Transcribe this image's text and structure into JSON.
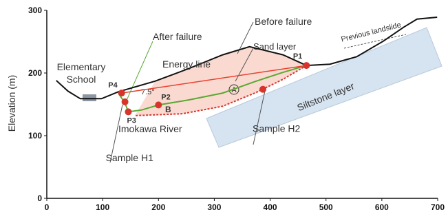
{
  "chart_data": {
    "type": "profile",
    "ylabel": "Elevation (m)",
    "xlim": [
      0,
      700
    ],
    "xticks": [
      0,
      100,
      200,
      300,
      400,
      500,
      600,
      700
    ],
    "ylim": [
      0,
      300
    ],
    "yticks": [
      0,
      100,
      200,
      300
    ],
    "series": [
      {
        "name": "Before failure",
        "color": "#111111",
        "x": [
          17,
          38,
          60,
          98,
          128,
          194,
          254,
          315,
          363,
          423,
          465,
          507,
          555,
          603,
          639,
          663,
          699
        ],
        "values": [
          188,
          171,
          159,
          159,
          170,
          187,
          207,
          229,
          242,
          229,
          212,
          214,
          226,
          251,
          273,
          286,
          289
        ]
      },
      {
        "name": "After failure",
        "color": "#5aa832",
        "x": [
          128,
          140,
          146,
          170,
          200,
          254,
          315,
          375,
          423,
          465
        ],
        "values": [
          168,
          152,
          138,
          141,
          149,
          157,
          168,
          187,
          201,
          212
        ]
      },
      {
        "color": "#d9342b",
        "x": [
          465,
          423,
          375,
          315,
          243,
          158
        ],
        "values": [
          212,
          190,
          169,
          147,
          135,
          132
        ]
      },
      {
        "name": "Energy line",
        "color": "#e8412f",
        "x": [
          134,
          465
        ],
        "values": [
          168,
          212
        ]
      }
    ],
    "points": [
      {
        "label": "P1",
        "x": 465,
        "y": 212
      },
      {
        "label": "P2",
        "x": 200,
        "y": 149
      },
      {
        "label": "P3",
        "x": 146,
        "y": 138
      },
      {
        "label": "P4",
        "x": 134,
        "y": 168
      }
    ],
    "samples": [
      {
        "label": "Sample H1",
        "x": 140,
        "y": 154
      },
      {
        "label": "Sample H2",
        "x": 387,
        "y": 174
      }
    ],
    "annotations": {
      "previous_landslide": "Previous landslide",
      "sand_layer": "Sand layer",
      "angle": "7.5°",
      "school_1": "Elementary",
      "school_2": "School",
      "a": "A",
      "b": "B",
      "river": "Imokawa River",
      "siltstone": "Siltstone layer"
    },
    "point_color": "#d9342b"
  }
}
